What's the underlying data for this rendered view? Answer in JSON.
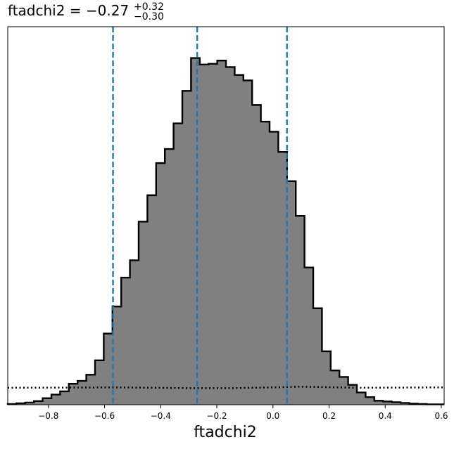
{
  "chart_data": {
    "type": "histogram",
    "title": {
      "parameter": "ftadchi2",
      "median": "−0.27",
      "upper": "+0.32",
      "lower": "−0.30"
    },
    "xlabel": "ftadchi2",
    "ylabel": "",
    "xlim": [
      -0.945,
      0.61
    ],
    "ylim": [
      0,
      1.0
    ],
    "x_ticks": [
      -0.8,
      -0.6,
      -0.4,
      -0.2,
      0.0,
      0.2,
      0.4,
      0.6
    ],
    "x_tick_labels": [
      "−0.8",
      "−0.6",
      "−0.4",
      "−0.2",
      "0.0",
      "0.2",
      "0.4",
      "0.6"
    ],
    "grid": false,
    "histogram": {
      "bin_start": -0.945,
      "bin_width": 0.0311,
      "fill_color": "#808080",
      "edge_color": "#000000",
      "values": [
        0.002,
        0.004,
        0.006,
        0.01,
        0.018,
        0.028,
        0.037,
        0.058,
        0.066,
        0.083,
        0.123,
        0.197,
        0.272,
        0.352,
        0.4,
        0.507,
        0.58,
        0.669,
        0.708,
        0.779,
        0.869,
        0.96,
        0.942,
        0.944,
        0.953,
        0.935,
        0.913,
        0.898,
        0.83,
        0.784,
        0.756,
        0.7,
        0.619,
        0.523,
        0.38,
        0.267,
        0.148,
        0.095,
        0.077,
        0.055,
        0.034,
        0.021,
        0.011,
        0.009,
        0.007,
        0.005,
        0.003,
        0.002,
        0.001,
        0.001
      ]
    },
    "prior_line": {
      "style": "dotted",
      "color": "#000000",
      "x": [
        -0.945,
        -0.55,
        -0.3,
        -0.15,
        0.0,
        0.1,
        0.3,
        0.61
      ],
      "y": [
        0.047,
        0.048,
        0.046,
        0.046,
        0.048,
        0.05,
        0.047,
        0.048
      ]
    },
    "quantile_lines": {
      "color": "#1f77b4",
      "style": "dashed",
      "values": [
        -0.57,
        -0.27,
        0.05
      ]
    }
  }
}
